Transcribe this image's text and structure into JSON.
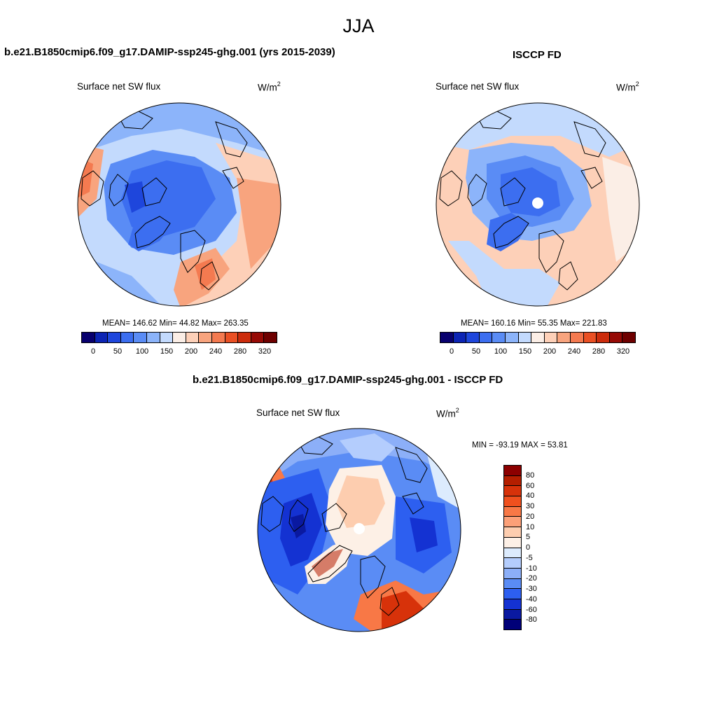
{
  "season": "JJA",
  "panels": [
    {
      "title": "b.e21.B1850cmip6.f09_g17.DAMIP-ssp245-ghg.001 (yrs 2015-2039)",
      "variable": "Surface net SW flux",
      "units": "W/m",
      "units_sup": "2",
      "stats": "MEAN= 146.62  Min=  44.82  Max= 263.35",
      "colorbar_labels": [
        "0",
        "50",
        "100",
        "150",
        "200",
        "240",
        "280",
        "320"
      ]
    },
    {
      "title": "ISCCP FD",
      "variable": "Surface net SW flux",
      "units": "W/m",
      "units_sup": "2",
      "stats": "MEAN= 160.16  Min=  55.35  Max= 221.83",
      "colorbar_labels": [
        "0",
        "50",
        "100",
        "150",
        "200",
        "240",
        "280",
        "320"
      ]
    },
    {
      "title": "b.e21.B1850cmip6.f09_g17.DAMIP-ssp245-ghg.001 - ISCCP FD",
      "variable": "Surface net SW flux",
      "units": "W/m",
      "units_sup": "2",
      "stats": "MIN = -93.19 MAX =  53.81",
      "colorbar_labels": [
        "80",
        "60",
        "40",
        "30",
        "20",
        "10",
        "5",
        "0",
        "-5",
        "-10",
        "-20",
        "-30",
        "-40",
        "-60",
        "-80"
      ]
    }
  ],
  "colors": {
    "field_scale": [
      "#08006e",
      "#0c24b4",
      "#1e46dc",
      "#3c6ef0",
      "#5a8cf5",
      "#8cb4fa",
      "#c3dafd",
      "#fbeee6",
      "#fdd0b8",
      "#f8a47e",
      "#f47a50",
      "#ea5024",
      "#cc2c0c",
      "#960a05",
      "#6e0000"
    ],
    "diff_scale": [
      "#8c0000",
      "#b41e00",
      "#d7320a",
      "#f0501e",
      "#f87846",
      "#fca078",
      "#fdcdaf",
      "#fdf0e6",
      "#dcebfd",
      "#b4cdfd",
      "#8caff8",
      "#5a8cf5",
      "#2d5ff0",
      "#1432d2",
      "#0a19a0",
      "#000078"
    ]
  }
}
